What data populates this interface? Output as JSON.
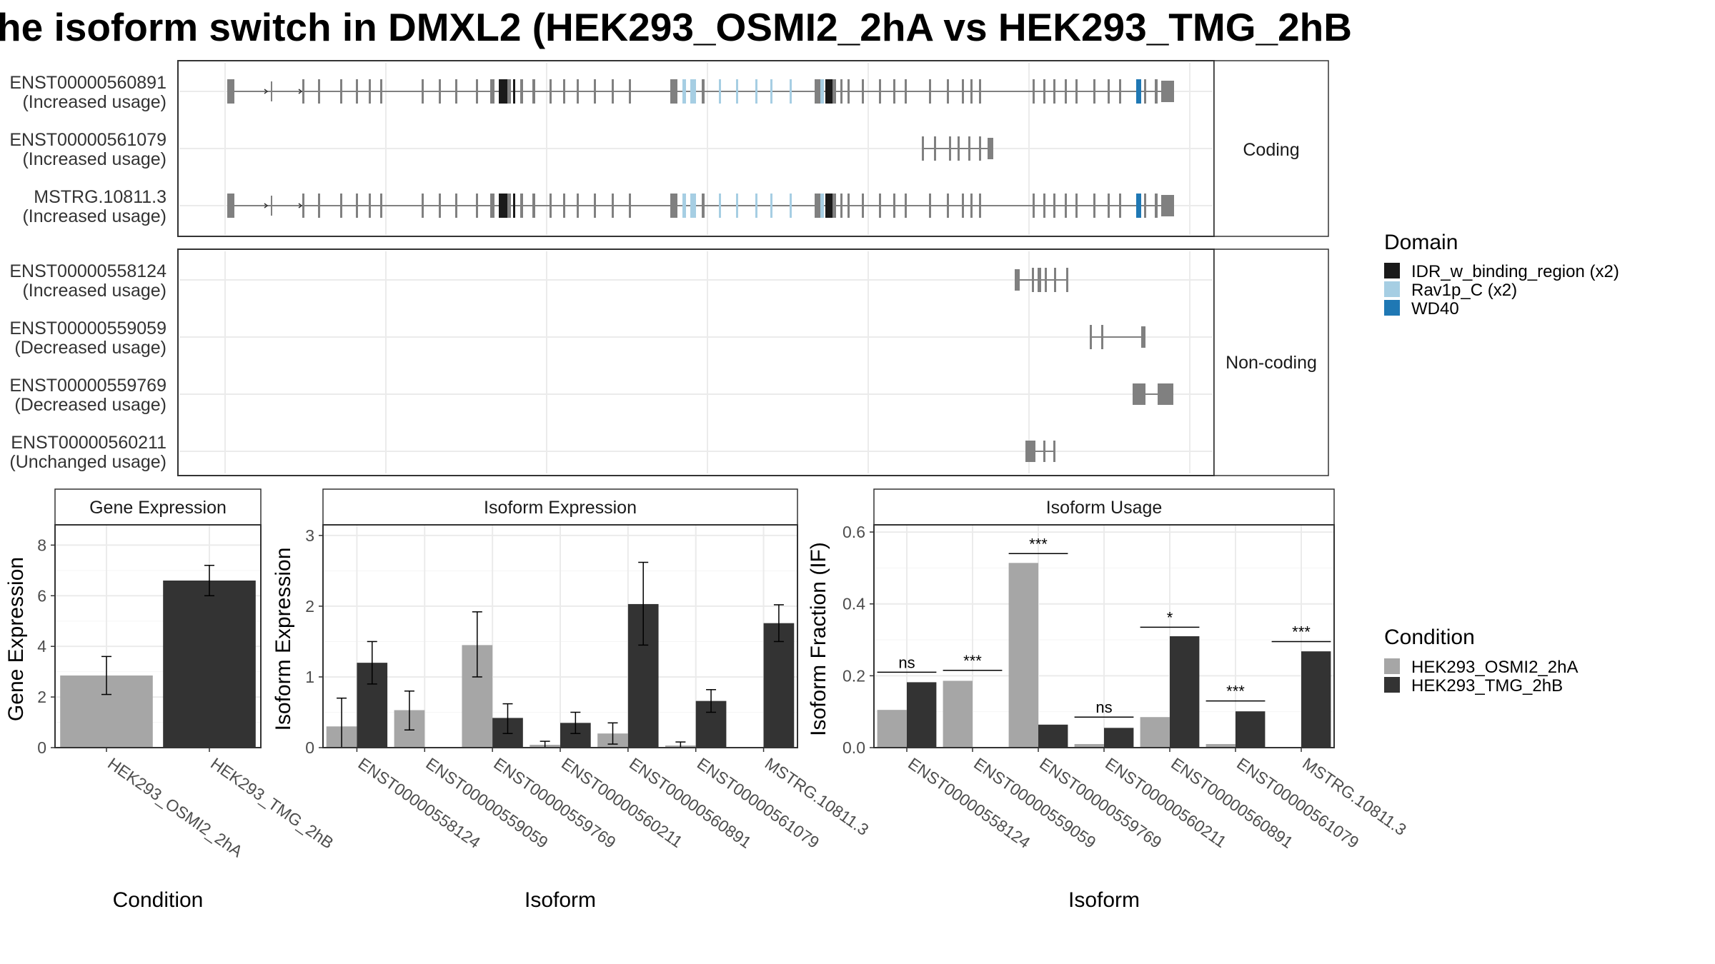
{
  "title": "he isoform switch in DMXL2 (HEK293_OSMI2_2hA vs HEK293_TMG_2hB",
  "colors": {
    "exon": "#808080",
    "intron": "#808080",
    "cond1": "#a6a6a6",
    "cond2": "#333333",
    "panel_border": "#333333",
    "grid": "#ebebeb",
    "strip_bg": "#ffffff"
  },
  "chart_data": [
    {
      "type": "gene-structure",
      "domain_legend": {
        "title": "Domain",
        "items": [
          {
            "name": "IDR_w_binding_region (x2)",
            "color": "#1a1a1a"
          },
          {
            "name": "Rav1p_C (x2)",
            "color": "#a6cee3"
          },
          {
            "name": "WD40",
            "color": "#1f78b4"
          }
        ]
      },
      "groups": [
        {
          "name": "Coding",
          "transcripts": [
            {
              "id": "ENST00000560891",
              "usage": "(Increased usage)",
              "template": "full"
            },
            {
              "id": "ENST00000561079",
              "usage": "(Increased usage)",
              "template": "short"
            },
            {
              "id": "MSTRG.10811.3",
              "usage": "(Increased usage)",
              "template": "full"
            }
          ]
        },
        {
          "name": "Non-coding",
          "transcripts": [
            {
              "id": "ENST00000558124",
              "usage": "(Increased usage)",
              "template": "nc1"
            },
            {
              "id": "ENST00000559059",
              "usage": "(Decreased usage)",
              "template": "nc2"
            },
            {
              "id": "ENST00000559769",
              "usage": "(Decreased usage)",
              "template": "nc3"
            },
            {
              "id": "ENST00000560211",
              "usage": "(Unchanged usage)",
              "template": "nc4"
            }
          ]
        }
      ]
    },
    {
      "type": "bar",
      "title": "Gene Expression",
      "xlabel": "Condition",
      "ylabel": "Gene Expression",
      "ylim": [
        0,
        8.8
      ],
      "yticks": [
        "0",
        "2",
        "4",
        "6",
        "8"
      ],
      "categories": [
        "HEK293_OSMI2_2hA",
        "HEK293_TMG_2hB"
      ],
      "values": [
        2.85,
        6.6
      ],
      "errors": [
        [
          2.1,
          3.6
        ],
        [
          6.0,
          7.2
        ]
      ]
    },
    {
      "type": "bar",
      "title": "Isoform Expression",
      "xlabel": "Isoform",
      "ylabel": "Isoform Expression",
      "ylim": [
        0,
        3.15
      ],
      "yticks": [
        "0",
        "1",
        "2",
        "3"
      ],
      "categories": [
        "ENST00000558124",
        "ENST00000559059",
        "ENST00000559769",
        "ENST00000560211",
        "ENST00000560891",
        "ENST00000561079",
        "MSTRG.10811.3"
      ],
      "series": [
        {
          "name": "HEK293_OSMI2_2hA",
          "values": [
            0.3,
            0.53,
            1.45,
            0.04,
            0.2,
            0.03,
            0.0
          ],
          "errors": [
            [
              0.0,
              0.7
            ],
            [
              0.25,
              0.8
            ],
            [
              1.0,
              1.92
            ],
            [
              0.0,
              0.09
            ],
            [
              0.05,
              0.35
            ],
            [
              0.0,
              0.08
            ],
            [
              0.0,
              0.0
            ]
          ]
        },
        {
          "name": "HEK293_TMG_2hB",
          "values": [
            1.2,
            0.0,
            0.42,
            0.35,
            2.03,
            0.66,
            1.76
          ],
          "errors": [
            [
              0.9,
              1.5
            ],
            [
              0.0,
              0.0
            ],
            [
              0.2,
              0.62
            ],
            [
              0.2,
              0.5
            ],
            [
              1.45,
              2.62
            ],
            [
              0.5,
              0.82
            ],
            [
              1.5,
              2.02
            ]
          ]
        }
      ]
    },
    {
      "type": "bar",
      "title": "Isoform Usage",
      "xlabel": "Isoform",
      "ylabel": "Isoform Fraction (IF)",
      "ylim": [
        0,
        0.62
      ],
      "yticks": [
        "0.0",
        "0.2",
        "0.4",
        "0.6"
      ],
      "categories": [
        "ENST00000558124",
        "ENST00000559059",
        "ENST00000559769",
        "ENST00000560211",
        "ENST00000560891",
        "ENST00000561079",
        "MSTRG.10811.3"
      ],
      "series": [
        {
          "name": "HEK293_OSMI2_2hA",
          "values": [
            0.105,
            0.186,
            0.514,
            0.01,
            0.085,
            0.01,
            0.0
          ]
        },
        {
          "name": "HEK293_TMG_2hB",
          "values": [
            0.182,
            0.0,
            0.064,
            0.055,
            0.31,
            0.101,
            0.268
          ]
        }
      ],
      "significance": [
        "ns",
        "***",
        "***",
        "ns",
        "*",
        "***",
        "***"
      ],
      "significance_y": [
        0.21,
        0.215,
        0.54,
        0.085,
        0.335,
        0.13,
        0.295
      ]
    }
  ],
  "condition_legend": {
    "title": "Condition",
    "items": [
      {
        "name": "HEK293_OSMI2_2hA",
        "color": "#a6a6a6"
      },
      {
        "name": "HEK293_TMG_2hB",
        "color": "#333333"
      }
    ]
  }
}
